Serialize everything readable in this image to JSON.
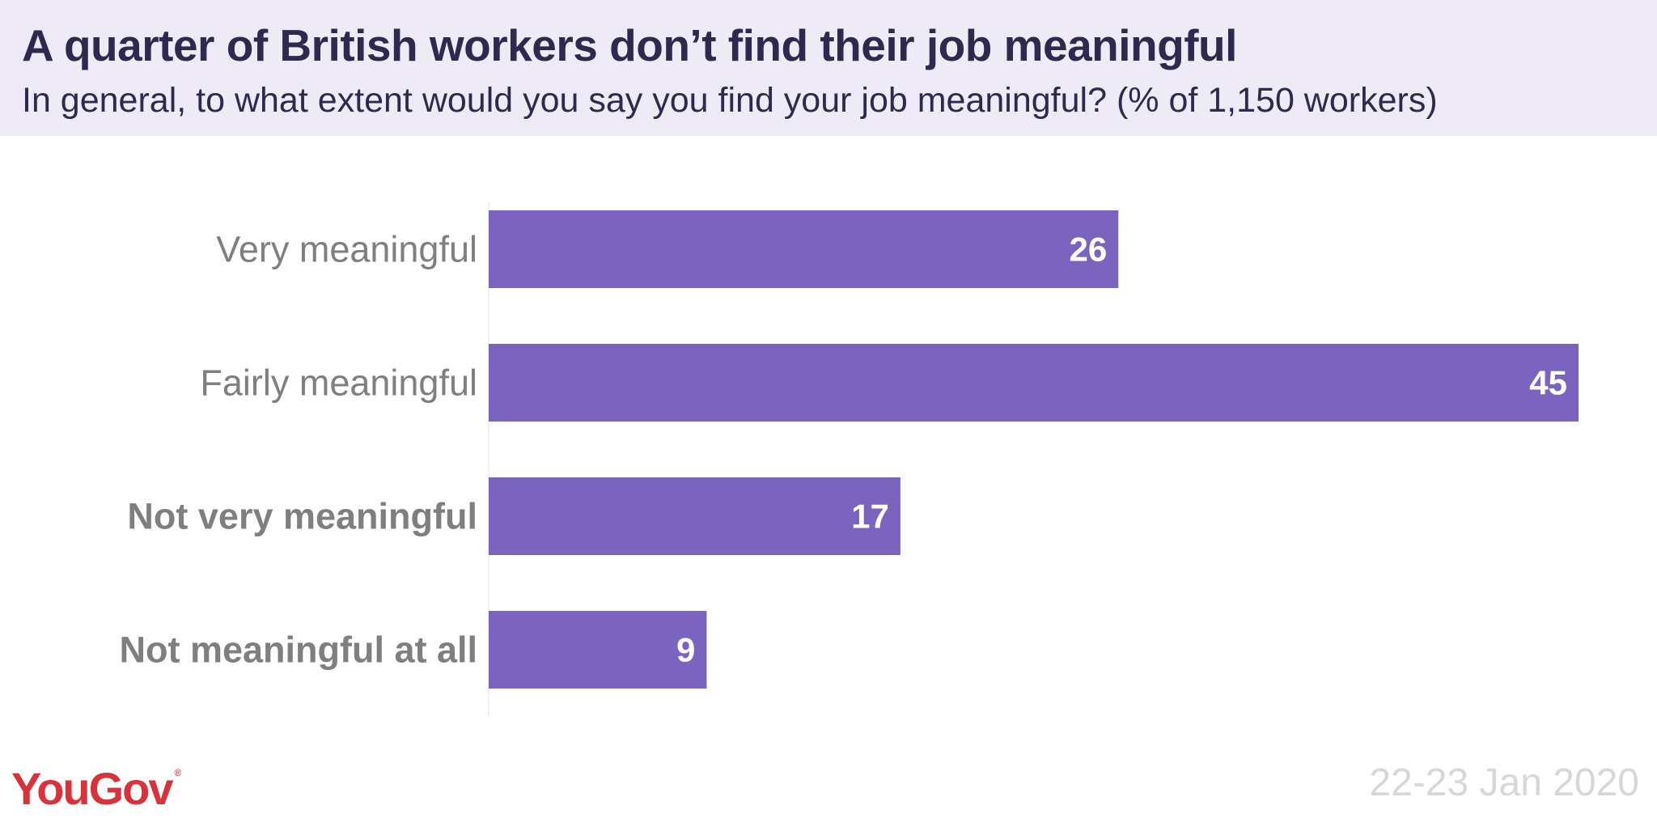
{
  "header": {
    "title": "A quarter of British workers don’t find their job meaningful",
    "subtitle": "In general, to what extent would you say you find your job meaningful?  (% of 1,150 workers)"
  },
  "footer": {
    "brand": "YouGov",
    "brand_mark": "®",
    "date": "22-23 Jan 2020"
  },
  "colors": {
    "bar": "#7b64c0",
    "header_bg": "#efebf6",
    "title": "#2e2a4f",
    "brand": "#d9323a"
  },
  "chart_data": {
    "type": "bar",
    "orientation": "horizontal",
    "categories": [
      "Very meaningful",
      "Fairly meaningful",
      "Not very meaningful",
      "Not meaningful at all"
    ],
    "bold_categories": [
      "Not very meaningful",
      "Not meaningful at all"
    ],
    "values": [
      26,
      45,
      17,
      9
    ],
    "data_labels": [
      "26",
      "45",
      "17",
      "9"
    ],
    "xlim": [
      0,
      45
    ],
    "grid": false,
    "legend": "none"
  }
}
